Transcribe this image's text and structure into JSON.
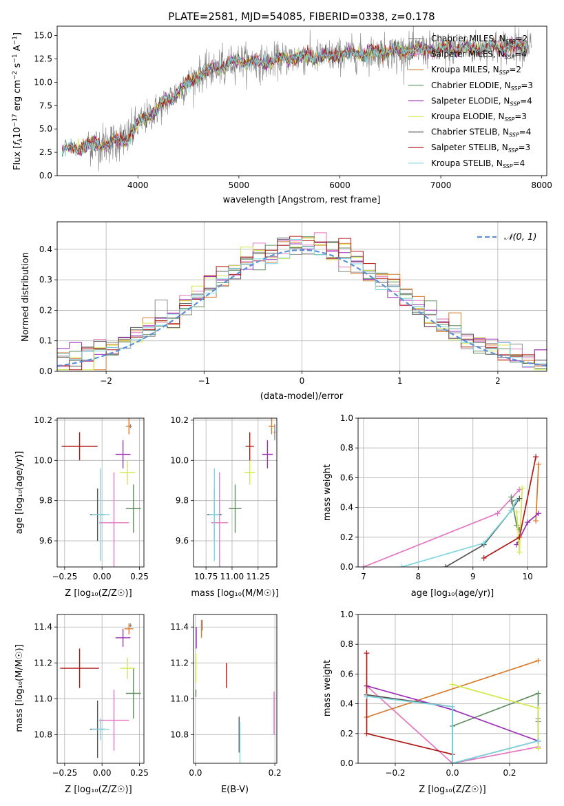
{
  "colors": {
    "Chabrier MILES": "#8c8c8c",
    "Salpeter MILES": "#e377c2",
    "Kroupa MILES": "#d67a2c",
    "Chabrier ELODIE": "#5f8f5f",
    "Salpeter ELODIE": "#9b30b8",
    "Kroupa ELODIE": "#d4e84a",
    "Chabrier STELIB": "#555555",
    "Salpeter STELIB": "#b01818",
    "Kroupa STELIB": "#7fd6e0",
    "spectrum": "#808080",
    "gauss": "#5b8fd6",
    "grid": "#b0b0b0"
  },
  "chart_data": [
    {
      "id": "spectrum",
      "type": "line",
      "title": "PLATE=2581, MJD=54085, FIBERID=0338, z=0.178",
      "xlabel": "wavelength [Angstrom, rest frame]",
      "ylabel_parts": [
        "Flux [",
        "f",
        "λ",
        "10",
        "−17",
        " erg cm",
        "−2",
        " s",
        "−1",
        " A",
        "−1",
        "]"
      ],
      "xlim": [
        3200,
        8050
      ],
      "ylim": [
        0,
        16
      ],
      "xticks": [
        "4000",
        "5000",
        "6000",
        "7000",
        "8000"
      ],
      "xtick_values": [
        4000,
        5000,
        6000,
        7000,
        8000
      ],
      "yticks": [
        "0.0",
        "2.5",
        "5.0",
        "7.5",
        "10.0",
        "12.5",
        "15.0"
      ],
      "ytick_values": [
        0,
        2.5,
        5,
        7.5,
        10,
        12.5,
        15
      ],
      "legend_position": "top-right",
      "legend": [
        {
          "name": "Chabrier MILES",
          "n": "2"
        },
        {
          "name": "Salpeter MILES",
          "n": "4"
        },
        {
          "name": "Kroupa MILES",
          "n": "2"
        },
        {
          "name": "Chabrier ELODIE",
          "n": "3"
        },
        {
          "name": "Salpeter ELODIE",
          "n": "4"
        },
        {
          "name": "Kroupa ELODIE",
          "n": "3"
        },
        {
          "name": "Chabrier STELIB",
          "n": "4"
        },
        {
          "name": "Salpeter STELIB",
          "n": "3"
        },
        {
          "name": "Kroupa STELIB",
          "n": "4"
        }
      ],
      "continuum": [
        [
          3250,
          2.8
        ],
        [
          3500,
          3.2
        ],
        [
          3700,
          3.5
        ],
        [
          3900,
          4.0
        ],
        [
          4000,
          5.5
        ],
        [
          4200,
          7.2
        ],
        [
          4400,
          9.0
        ],
        [
          4600,
          10.8
        ],
        [
          4800,
          11.6
        ],
        [
          5000,
          12.4
        ],
        [
          5200,
          12.0
        ],
        [
          5500,
          12.6
        ],
        [
          5800,
          12.7
        ],
        [
          6100,
          13.0
        ],
        [
          6500,
          13.3
        ],
        [
          6800,
          13.4
        ],
        [
          7200,
          13.6
        ],
        [
          7600,
          13.8
        ],
        [
          7900,
          14.0
        ]
      ],
      "model_range": [
        3250,
        7850
      ]
    },
    {
      "id": "residuals",
      "type": "histogram",
      "xlabel": "(data-model)/error",
      "ylabel": "Normed distribution",
      "xlim": [
        -2.5,
        2.5
      ],
      "ylim": [
        0,
        0.49
      ],
      "xticks": [
        "−2",
        "−1",
        "0",
        "1",
        "2"
      ],
      "xtick_values": [
        -2,
        -1,
        0,
        1,
        2
      ],
      "yticks": [
        "0.0",
        "0.1",
        "0.2",
        "0.3",
        "0.4"
      ],
      "ytick_values": [
        0,
        0.1,
        0.2,
        0.3,
        0.4
      ],
      "legend": "𝒩(0, 1)",
      "legend_position": "top-right",
      "bins": 40,
      "gaussian": {
        "mu": 0,
        "sigma": 1
      }
    },
    {
      "id": "age-vs-Z",
      "type": "scatter",
      "xlabel": "Z [log₁₀(Z/Z☉)]",
      "ylabel": "age  [log₁₀(age/yr)]",
      "xlim": [
        -0.3,
        0.28
      ],
      "ylim": [
        9.47,
        10.21
      ],
      "xticks": [
        "−0.25",
        "0.00",
        "0.25"
      ],
      "xtick_values": [
        -0.25,
        0,
        0.25
      ],
      "yticks": [
        "9.6",
        "9.8",
        "10.0",
        "10.2"
      ],
      "ytick_values": [
        9.6,
        9.8,
        10.0,
        10.2
      ],
      "points": [
        {
          "model": "Chabrier MILES",
          "x": 0.19,
          "xe": 0.01,
          "y": 10.17,
          "ye": 0.01
        },
        {
          "model": "Salpeter MILES",
          "x": 0.08,
          "xe": 0.1,
          "y": 9.69,
          "ye": 0.25
        },
        {
          "model": "Kroupa MILES",
          "x": 0.18,
          "xe": 0.02,
          "y": 10.17,
          "ye": 0.04
        },
        {
          "model": "Chabrier ELODIE",
          "x": 0.21,
          "xe": 0.05,
          "y": 9.76,
          "ye": 0.12
        },
        {
          "model": "Salpeter ELODIE",
          "x": 0.14,
          "xe": 0.05,
          "y": 10.03,
          "ye": 0.07
        },
        {
          "model": "Kroupa ELODIE",
          "x": 0.17,
          "xe": 0.05,
          "y": 9.94,
          "ye": 0.06
        },
        {
          "model": "Chabrier STELIB",
          "x": -0.03,
          "xe": 0.05,
          "y": 9.73,
          "ye": 0.13
        },
        {
          "model": "Salpeter STELIB",
          "x": -0.15,
          "xe": 0.12,
          "y": 10.07,
          "ye": 0.07
        },
        {
          "model": "Kroupa STELIB",
          "x": -0.01,
          "xe": 0.06,
          "y": 9.73,
          "ye": 0.23
        }
      ]
    },
    {
      "id": "age-vs-mass",
      "type": "scatter",
      "xlabel": "mass [log₁₀(M/M☉)]",
      "xlim": [
        10.63,
        11.43
      ],
      "ylim": [
        9.47,
        10.21
      ],
      "xticks": [
        "10.75",
        "11.00",
        "11.25"
      ],
      "xtick_values": [
        10.75,
        11.0,
        11.25
      ],
      "yticks": [
        "9.6",
        "9.8",
        "10.0",
        "10.2"
      ],
      "ytick_values": [
        9.6,
        9.8,
        10.0,
        10.2
      ],
      "points": [
        {
          "model": "Chabrier MILES",
          "x": 11.41,
          "xe": 0.01,
          "y": 10.14,
          "ye": 0.04
        },
        {
          "model": "Salpeter MILES",
          "x": 10.88,
          "xe": 0.08,
          "y": 9.69,
          "ye": 0.25
        },
        {
          "model": "Kroupa MILES",
          "x": 11.38,
          "xe": 0.03,
          "y": 10.17,
          "ye": 0.04
        },
        {
          "model": "Chabrier ELODIE",
          "x": 11.03,
          "xe": 0.06,
          "y": 9.76,
          "ye": 0.12
        },
        {
          "model": "Salpeter ELODIE",
          "x": 11.34,
          "xe": 0.05,
          "y": 10.03,
          "ye": 0.07
        },
        {
          "model": "Kroupa ELODIE",
          "x": 11.17,
          "xe": 0.05,
          "y": 9.94,
          "ye": 0.06
        },
        {
          "model": "Chabrier STELIB",
          "x": 10.83,
          "xe": 0.07,
          "y": 9.73,
          "ye": 0.13
        },
        {
          "model": "Salpeter STELIB",
          "x": 11.17,
          "xe": 0.04,
          "y": 10.07,
          "ye": 0.07
        },
        {
          "model": "Kroupa STELIB",
          "x": 10.83,
          "xe": 0.05,
          "y": 9.73,
          "ye": 0.23
        }
      ]
    },
    {
      "id": "weight-vs-age",
      "type": "line",
      "xlabel": "age  [log₁₀(age/yr)]",
      "ylabel": "mass weight",
      "xlim": [
        6.9,
        10.35
      ],
      "ylim": [
        0,
        1
      ],
      "xticks": [
        "7",
        "8",
        "9",
        "10"
      ],
      "xtick_values": [
        7,
        8,
        9,
        10
      ],
      "yticks": [
        "0.0",
        "0.2",
        "0.4",
        "0.6",
        "0.8",
        "1.0"
      ],
      "ytick_values": [
        0,
        0.2,
        0.4,
        0.6,
        0.8,
        1.0
      ],
      "series": [
        {
          "model": "Chabrier MILES",
          "x": [
            9.7,
            9.85
          ],
          "y": [
            0.44,
            0.46
          ]
        },
        {
          "model": "Salpeter MILES",
          "x": [
            7.0,
            9.45,
            9.85
          ],
          "y": [
            0.0,
            0.36,
            0.52
          ]
        },
        {
          "model": "Kroupa MILES",
          "x": [
            10.15,
            10.2
          ],
          "y": [
            0.31,
            0.69
          ]
        },
        {
          "model": "Chabrier ELODIE",
          "x": [
            9.7,
            9.8,
            9.85
          ],
          "y": [
            0.47,
            0.28,
            0.25
          ]
        },
        {
          "model": "Salpeter ELODIE",
          "x": [
            9.8,
            10.0,
            10.2
          ],
          "y": [
            0.15,
            0.3,
            0.36
          ]
        },
        {
          "model": "Kroupa ELODIE",
          "x": [
            9.8,
            9.85,
            9.9
          ],
          "y": [
            0.37,
            0.1,
            0.53
          ]
        },
        {
          "model": "Chabrier STELIB",
          "x": [
            8.5,
            9.2,
            9.7,
            9.85
          ],
          "y": [
            0.0,
            0.15,
            0.38,
            0.46
          ]
        },
        {
          "model": "Salpeter STELIB",
          "x": [
            9.2,
            9.85,
            10.15
          ],
          "y": [
            0.06,
            0.2,
            0.74
          ]
        },
        {
          "model": "Kroupa STELIB",
          "x": [
            7.7,
            9.2,
            9.7,
            9.8
          ],
          "y": [
            0.0,
            0.16,
            0.38,
            0.45
          ]
        }
      ]
    },
    {
      "id": "mass-vs-Z",
      "type": "scatter",
      "xlabel": "Z [log₁₀(Z/Z☉)]",
      "ylabel": "mass [log₁₀(M/M☉)]",
      "xlim": [
        -0.3,
        0.28
      ],
      "ylim": [
        10.64,
        11.47
      ],
      "xticks": [
        "−0.25",
        "0.00",
        "0.25"
      ],
      "xtick_values": [
        -0.25,
        0,
        0.25
      ],
      "yticks": [
        "10.8",
        "11.0",
        "11.2",
        "11.4"
      ],
      "ytick_values": [
        10.8,
        11.0,
        11.2,
        11.4
      ],
      "points": [
        {
          "model": "Chabrier MILES",
          "x": 0.19,
          "xe": 0.01,
          "y": 11.41,
          "ye": 0.01
        },
        {
          "model": "Salpeter MILES",
          "x": 0.08,
          "xe": 0.1,
          "y": 10.88,
          "ye": 0.17
        },
        {
          "model": "Kroupa MILES",
          "x": 0.18,
          "xe": 0.03,
          "y": 11.39,
          "ye": 0.03
        },
        {
          "model": "Chabrier ELODIE",
          "x": 0.21,
          "xe": 0.05,
          "y": 11.03,
          "ye": 0.14
        },
        {
          "model": "Salpeter ELODIE",
          "x": 0.14,
          "xe": 0.05,
          "y": 11.34,
          "ye": 0.05
        },
        {
          "model": "Kroupa ELODIE",
          "x": 0.17,
          "xe": 0.05,
          "y": 11.17,
          "ye": 0.06
        },
        {
          "model": "Chabrier STELIB",
          "x": -0.03,
          "xe": 0.05,
          "y": 10.83,
          "ye": 0.16
        },
        {
          "model": "Salpeter STELIB",
          "x": -0.15,
          "xe": 0.13,
          "y": 11.17,
          "ye": 0.11
        },
        {
          "model": "Kroupa STELIB",
          "x": -0.01,
          "xe": 0.06,
          "y": 10.83,
          "ye": 0.06
        }
      ]
    },
    {
      "id": "mass-vs-EBV",
      "type": "scatter",
      "xlabel": "E(B-V)",
      "xlim": [
        -0.005,
        0.205
      ],
      "ylim": [
        10.64,
        11.47
      ],
      "xticks": [
        "0.0",
        "0.2"
      ],
      "xtick_values": [
        0.0,
        0.2
      ],
      "yticks": [
        "10.8",
        "11.0",
        "11.2",
        "11.4"
      ],
      "ytick_values": [
        10.8,
        11.0,
        11.2,
        11.4
      ],
      "points": [
        {
          "model": "Chabrier MILES",
          "x": 0.017,
          "xe": 0,
          "y": 11.41,
          "ye": 0.03
        },
        {
          "model": "Salpeter MILES",
          "x": 0.198,
          "xe": 0,
          "y": 10.92,
          "ye": 0.12
        },
        {
          "model": "Kroupa MILES",
          "x": 0.015,
          "xe": 0,
          "y": 11.39,
          "ye": 0.05
        },
        {
          "model": "Chabrier ELODIE",
          "x": 0.001,
          "xe": 0,
          "y": 11.03,
          "ye": 0.02
        },
        {
          "model": "Salpeter ELODIE",
          "x": 0.002,
          "xe": 0,
          "y": 11.34,
          "ye": 0.06
        },
        {
          "model": "Kroupa ELODIE",
          "x": 0.001,
          "xe": 0,
          "y": 11.17,
          "ye": 0.08
        },
        {
          "model": "Chabrier STELIB",
          "x": 0.11,
          "xe": 0,
          "y": 10.8,
          "ye": 0.1
        },
        {
          "model": "Salpeter STELIB",
          "x": 0.078,
          "xe": 0,
          "y": 11.13,
          "ye": 0.07
        },
        {
          "model": "Kroupa STELIB",
          "x": 0.112,
          "xe": 0,
          "y": 10.75,
          "ye": 0.12
        }
      ]
    },
    {
      "id": "weight-vs-Z",
      "type": "line",
      "xlabel": "Z [log₁₀(Z/Z☉)]",
      "ylabel": "mass weight",
      "xlim": [
        -0.33,
        0.33
      ],
      "ylim": [
        0,
        1
      ],
      "xticks": [
        "−0.2",
        "0.0",
        "0.2"
      ],
      "xtick_values": [
        -0.2,
        0,
        0.2
      ],
      "yticks": [
        "0.0",
        "0.2",
        "0.4",
        "0.6",
        "0.8",
        "1.0"
      ],
      "ytick_values": [
        0,
        0.2,
        0.4,
        0.6,
        0.8,
        1.0
      ],
      "series": [
        {
          "model": "Chabrier MILES",
          "x": [
            0.3,
            0.3
          ],
          "y": [
            0.3,
            0.28
          ]
        },
        {
          "model": "Salpeter MILES",
          "x": [
            -0.3,
            0.0,
            0.3
          ],
          "y": [
            0.52,
            0.0,
            0.11
          ]
        },
        {
          "model": "Kroupa MILES",
          "x": [
            -0.3,
            0.3
          ],
          "y": [
            0.31,
            0.69
          ]
        },
        {
          "model": "Chabrier ELODIE",
          "x": [
            0.0,
            0.3,
            0.3
          ],
          "y": [
            0.25,
            0.47,
            0.15
          ]
        },
        {
          "model": "Salpeter ELODIE",
          "x": [
            -0.3,
            0.0,
            0.3
          ],
          "y": [
            0.52,
            0.36,
            0.15
          ]
        },
        {
          "model": "Kroupa ELODIE",
          "x": [
            0.0,
            0.3,
            0.3
          ],
          "y": [
            0.53,
            0.37,
            0.1
          ]
        },
        {
          "model": "Chabrier STELIB",
          "x": [
            -0.3,
            0.0,
            0.0,
            0.3
          ],
          "y": [
            0.46,
            0.38,
            0.0,
            0.15
          ]
        },
        {
          "model": "Salpeter STELIB",
          "x": [
            -0.3,
            -0.3,
            0.0
          ],
          "y": [
            0.74,
            0.2,
            0.06
          ]
        },
        {
          "model": "Kroupa STELIB",
          "x": [
            -0.3,
            0.0,
            0.0,
            0.3
          ],
          "y": [
            0.45,
            0.38,
            0.0,
            0.15
          ]
        }
      ]
    }
  ]
}
